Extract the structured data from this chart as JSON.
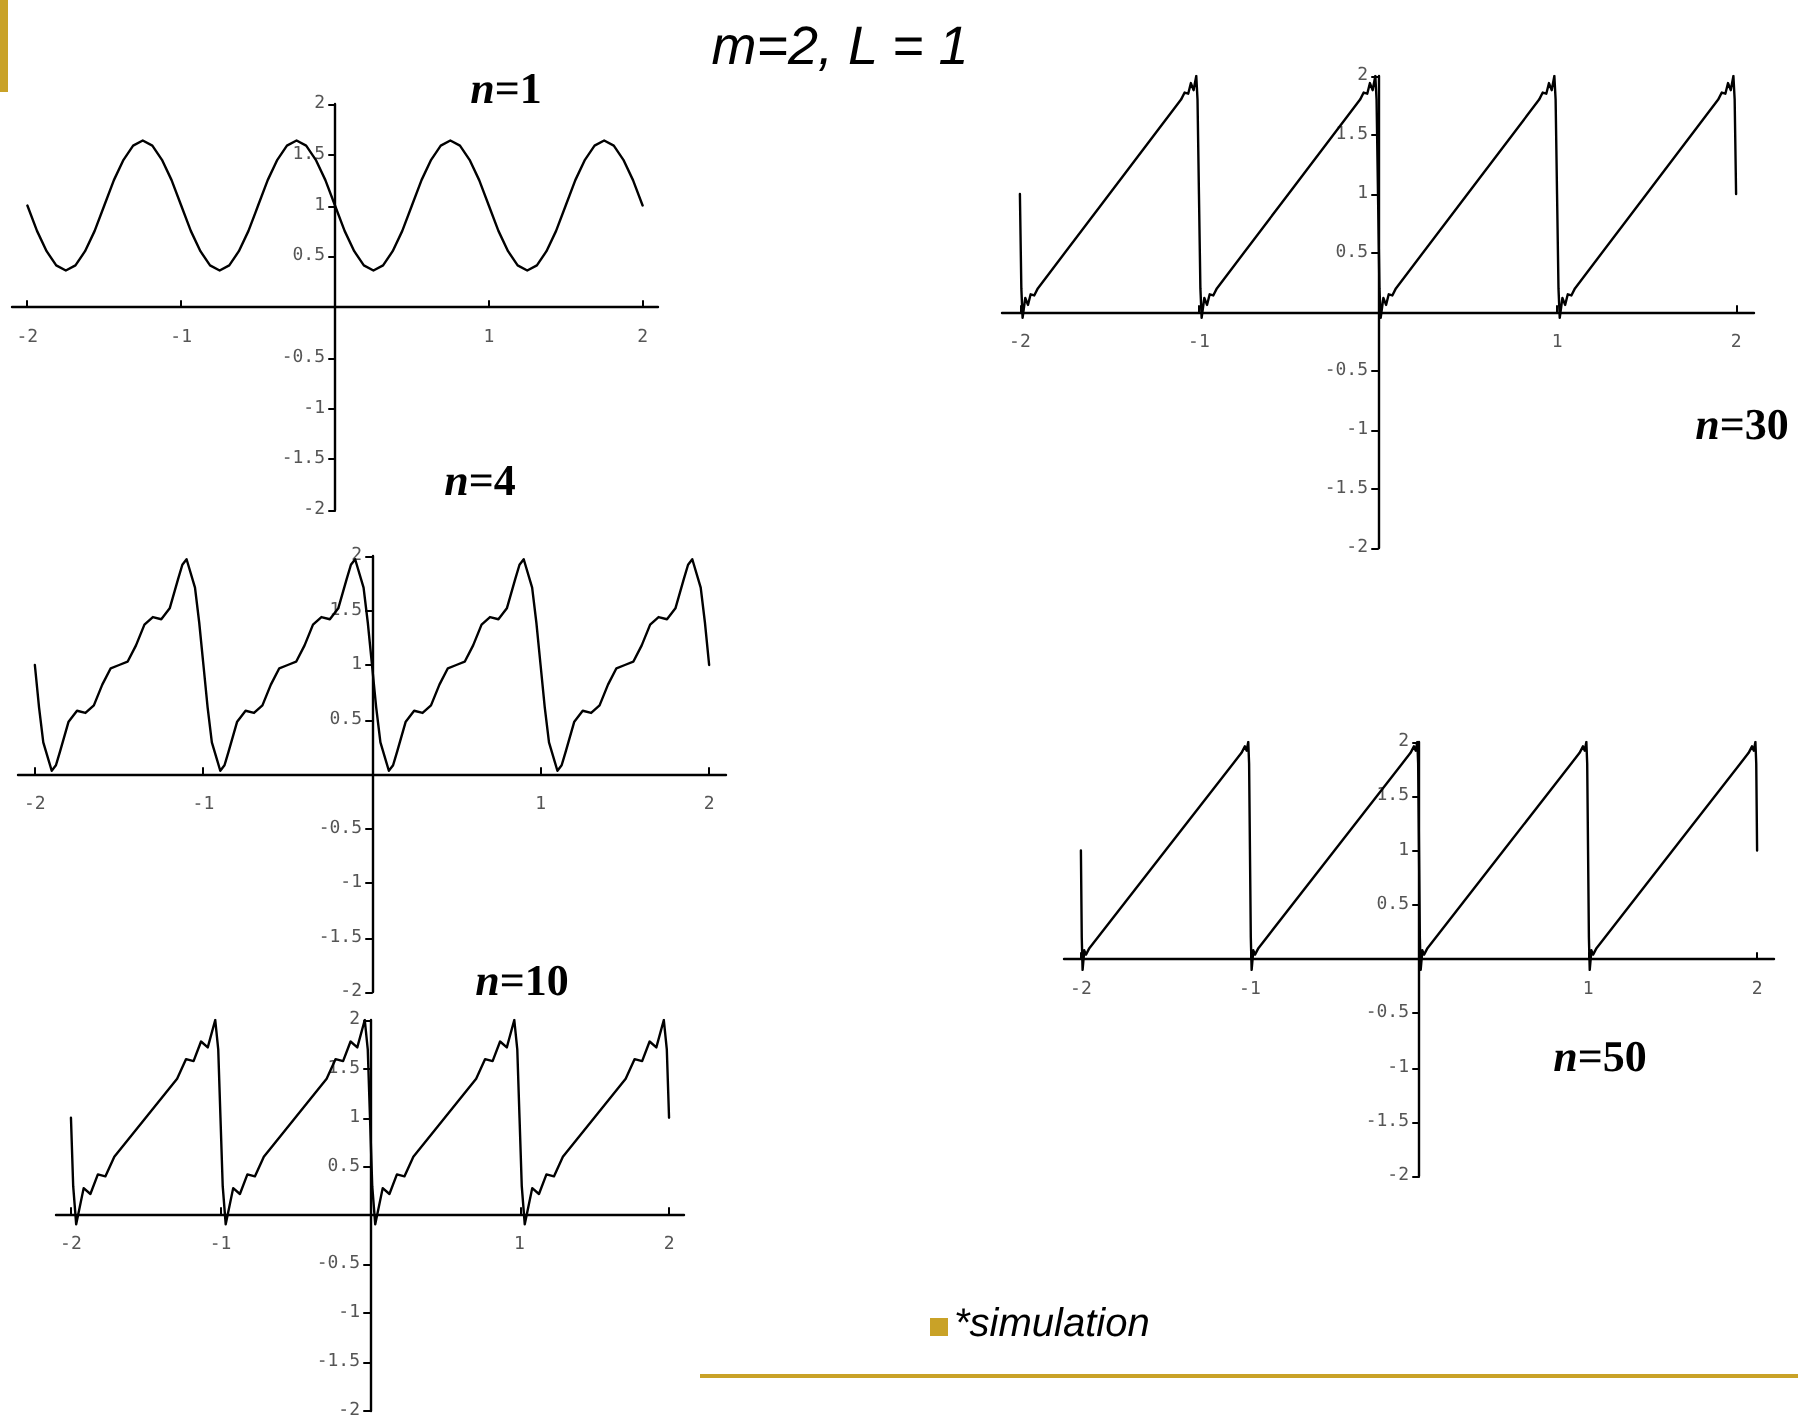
{
  "chart_data": [
    {
      "type": "line",
      "title": "n=1",
      "color": "#000000",
      "xlim": [
        -2.1,
        2.1
      ],
      "xticks": [
        -2,
        -1,
        1,
        2
      ],
      "ylim": [
        -2,
        2
      ],
      "yticks": [
        -2,
        -1.5,
        -1,
        -0.5,
        0.5,
        1,
        1.5,
        2
      ],
      "x": [
        -2,
        -1.9375,
        -1.875,
        -1.8125,
        -1.75,
        -1.6875,
        -1.625,
        -1.5625,
        -1.5,
        -1.4375,
        -1.375,
        -1.3125,
        -1.25,
        -1.1875,
        -1.125,
        -1.0625,
        -1,
        -0.9375,
        -0.875,
        -0.8125,
        -0.75,
        -0.6875,
        -0.625,
        -0.5625,
        -0.5,
        -0.4375,
        -0.375,
        -0.3125,
        -0.25,
        -0.1875,
        -0.125,
        -0.0625,
        0,
        0.0625,
        0.125,
        0.1875,
        0.25,
        0.3125,
        0.375,
        0.4375,
        0.5,
        0.5625,
        0.625,
        0.6875,
        0.75,
        0.8125,
        0.875,
        0.9375,
        1,
        1.0625,
        1.125,
        1.1875,
        1.25,
        1.3125,
        1.375,
        1.4375,
        1.5,
        1.5625,
        1.625,
        1.6875,
        1.75,
        1.8125,
        1.875,
        1.9375,
        2
      ],
      "values": [
        1,
        0.75,
        0.55,
        0.41,
        0.36,
        0.41,
        0.55,
        0.75,
        1,
        1.25,
        1.45,
        1.59,
        1.64,
        1.59,
        1.45,
        1.25,
        1,
        0.75,
        0.55,
        0.41,
        0.36,
        0.41,
        0.55,
        0.75,
        1,
        1.25,
        1.45,
        1.59,
        1.64,
        1.59,
        1.45,
        1.25,
        1,
        0.75,
        0.55,
        0.41,
        0.36,
        0.41,
        0.55,
        0.75,
        1,
        1.25,
        1.45,
        1.59,
        1.64,
        1.59,
        1.45,
        1.25,
        1,
        0.75,
        0.55,
        0.41,
        0.36,
        0.41,
        0.55,
        0.75,
        1,
        1.25,
        1.45,
        1.59,
        1.64,
        1.59,
        1.45,
        1.25,
        1
      ]
    },
    {
      "type": "line",
      "title": "n=4",
      "color": "#000000",
      "xlim": [
        -2.1,
        2.1
      ],
      "xticks": [
        -2,
        -1,
        1,
        2
      ],
      "ylim": [
        -2,
        2
      ],
      "yticks": [
        -2,
        -1.5,
        -1,
        -0.5,
        0.5,
        1,
        1.5,
        2
      ],
      "x": [
        -2,
        -1.975,
        -1.95,
        -1.9,
        -1.875,
        -1.85,
        -1.8,
        -1.75,
        -1.7,
        -1.65,
        -1.6,
        -1.55,
        -1.5,
        -1.45,
        -1.4,
        -1.35,
        -1.3,
        -1.25,
        -1.2,
        -1.15,
        -1.125,
        -1.1,
        -1.05,
        -1.025,
        -1,
        -0.975,
        -0.95,
        -0.9,
        -0.875,
        -0.85,
        -0.8,
        -0.75,
        -0.7,
        -0.65,
        -0.6,
        -0.55,
        -0.5,
        -0.45,
        -0.4,
        -0.35,
        -0.3,
        -0.25,
        -0.2,
        -0.15,
        -0.125,
        -0.1,
        -0.05,
        -0.025,
        0,
        0.025,
        0.05,
        0.1,
        0.125,
        0.15,
        0.2,
        0.25,
        0.3,
        0.35,
        0.4,
        0.45,
        0.5,
        0.55,
        0.6,
        0.65,
        0.7,
        0.75,
        0.8,
        0.85,
        0.875,
        0.9,
        0.95,
        0.975,
        1,
        1.025,
        1.05,
        1.1,
        1.125,
        1.15,
        1.2,
        1.25,
        1.3,
        1.35,
        1.4,
        1.45,
        1.5,
        1.55,
        1.6,
        1.65,
        1.7,
        1.75,
        1.8,
        1.85,
        1.875,
        1.9,
        1.95,
        1.975,
        2
      ],
      "values": [
        1,
        0.61,
        0.29,
        0.03,
        0.08,
        0.21,
        0.48,
        0.58,
        0.56,
        0.63,
        0.82,
        0.97,
        1,
        1.03,
        1.18,
        1.37,
        1.44,
        1.42,
        1.52,
        1.79,
        1.92,
        1.97,
        1.71,
        1.39,
        1,
        0.61,
        0.29,
        0.03,
        0.08,
        0.21,
        0.48,
        0.58,
        0.56,
        0.63,
        0.82,
        0.97,
        1,
        1.03,
        1.18,
        1.37,
        1.44,
        1.42,
        1.52,
        1.79,
        1.92,
        1.97,
        1.71,
        1.39,
        1,
        0.61,
        0.29,
        0.03,
        0.08,
        0.21,
        0.48,
        0.58,
        0.56,
        0.63,
        0.82,
        0.97,
        1,
        1.03,
        1.18,
        1.37,
        1.44,
        1.42,
        1.52,
        1.79,
        1.92,
        1.97,
        1.71,
        1.39,
        1,
        0.61,
        0.29,
        0.03,
        0.08,
        0.21,
        0.48,
        0.58,
        0.56,
        0.63,
        0.82,
        0.97,
        1,
        1.03,
        1.18,
        1.37,
        1.44,
        1.42,
        1.52,
        1.79,
        1.92,
        1.97,
        1.71,
        1.39,
        1
      ]
    },
    {
      "type": "line",
      "title": "n=10",
      "color": "#000000",
      "xlim": [
        -2.1,
        2.1
      ],
      "xticks": [
        -2,
        -1,
        1,
        2
      ],
      "ylim": [
        -2,
        2
      ],
      "yticks": [
        -2,
        -1.5,
        -1,
        -0.5,
        0.5,
        1,
        1.5,
        2
      ],
      "x": [
        -2,
        -1.985,
        -1.965,
        -1.915,
        -1.87,
        -1.82,
        -1.77,
        -1.71,
        -1.5,
        -1.29,
        -1.23,
        -1.18,
        -1.13,
        -1.085,
        -1.035,
        -1.015,
        -1,
        -0.985,
        -0.965,
        -0.915,
        -0.87,
        -0.82,
        -0.77,
        -0.71,
        -0.5,
        -0.29,
        -0.23,
        -0.18,
        -0.13,
        -0.085,
        -0.035,
        -0.015,
        0,
        0.015,
        0.035,
        0.085,
        0.13,
        0.18,
        0.23,
        0.29,
        0.5,
        0.71,
        0.77,
        0.82,
        0.87,
        0.915,
        0.965,
        0.985,
        1,
        1.015,
        1.035,
        1.085,
        1.13,
        1.18,
        1.23,
        1.29,
        1.5,
        1.71,
        1.77,
        1.82,
        1.87,
        1.915,
        1.965,
        1.985,
        2
      ],
      "values": [
        1,
        0.3,
        -0.09,
        0.28,
        0.22,
        0.42,
        0.4,
        0.6,
        1,
        1.4,
        1.6,
        1.58,
        1.78,
        1.72,
        2,
        1.7,
        1,
        0.3,
        -0.09,
        0.28,
        0.22,
        0.42,
        0.4,
        0.6,
        1,
        1.4,
        1.6,
        1.58,
        1.78,
        1.72,
        2,
        1.7,
        1,
        0.3,
        -0.09,
        0.28,
        0.22,
        0.42,
        0.4,
        0.6,
        1,
        1.4,
        1.6,
        1.58,
        1.78,
        1.72,
        2,
        1.7,
        1,
        0.3,
        -0.09,
        0.28,
        0.22,
        0.42,
        0.4,
        0.6,
        1,
        1.4,
        1.6,
        1.58,
        1.78,
        1.72,
        2,
        1.7,
        1
      ]
    },
    {
      "type": "line",
      "title": "n=30",
      "color": "#000000",
      "xlim": [
        -2.1,
        2.1
      ],
      "xticks": [
        -2,
        -1,
        1,
        2
      ],
      "ylim": [
        -2,
        2
      ],
      "yticks": [
        -2,
        -1.5,
        -1,
        -0.5,
        0.5,
        1,
        1.5,
        2
      ],
      "x": [
        -2,
        -1.992,
        -1.985,
        -1.97,
        -1.955,
        -1.94,
        -1.92,
        -1.9,
        -1.5,
        -1.1,
        -1.08,
        -1.06,
        -1.045,
        -1.03,
        -1.015,
        -1.008,
        -1,
        -0.992,
        -0.985,
        -0.97,
        -0.955,
        -0.94,
        -0.92,
        -0.9,
        -0.5,
        -0.1,
        -0.08,
        -0.06,
        -0.045,
        -0.03,
        -0.015,
        -0.008,
        0,
        0.008,
        0.015,
        0.03,
        0.045,
        0.06,
        0.08,
        0.1,
        0.5,
        0.9,
        0.92,
        0.94,
        0.955,
        0.97,
        0.985,
        0.992,
        1,
        1.008,
        1.015,
        1.03,
        1.045,
        1.06,
        1.08,
        1.1,
        1.5,
        1.9,
        1.92,
        1.94,
        1.955,
        1.97,
        1.985,
        1.992,
        2
      ],
      "values": [
        1,
        0.2,
        -0.05,
        0.12,
        0.06,
        0.15,
        0.14,
        0.2,
        1,
        1.8,
        1.86,
        1.85,
        1.94,
        1.88,
        2,
        1.8,
        1,
        0.2,
        -0.05,
        0.12,
        0.06,
        0.15,
        0.14,
        0.2,
        1,
        1.8,
        1.86,
        1.85,
        1.94,
        1.88,
        2,
        1.8,
        1,
        0.2,
        -0.05,
        0.12,
        0.06,
        0.15,
        0.14,
        0.2,
        1,
        1.8,
        1.86,
        1.85,
        1.94,
        1.88,
        2,
        1.8,
        1,
        0.2,
        -0.05,
        0.12,
        0.06,
        0.15,
        0.14,
        0.2,
        1,
        1.8,
        1.86,
        1.85,
        1.94,
        1.88,
        2,
        1.8,
        1
      ]
    },
    {
      "type": "line",
      "title": "n=50",
      "color": "#000000",
      "xlim": [
        -2.1,
        2.1
      ],
      "xticks": [
        -2,
        -1,
        1,
        2
      ],
      "ylim": [
        -2,
        2
      ],
      "yticks": [
        -2,
        -1.5,
        -1,
        -0.5,
        0.5,
        1,
        1.5,
        2
      ],
      "x": [
        -2,
        -1.995,
        -1.99,
        -1.98,
        -1.97,
        -1.95,
        -1.5,
        -1.05,
        -1.03,
        -1.02,
        -1.01,
        -1.005,
        -1,
        -0.995,
        -0.99,
        -0.98,
        -0.97,
        -0.95,
        -0.5,
        -0.05,
        -0.03,
        -0.02,
        -0.01,
        -0.005,
        0,
        0.005,
        0.01,
        0.02,
        0.03,
        0.05,
        0.5,
        0.95,
        0.97,
        0.98,
        0.99,
        0.995,
        1,
        1.005,
        1.01,
        1.02,
        1.03,
        1.05,
        1.5,
        1.95,
        1.97,
        1.98,
        1.99,
        1.995,
        2
      ],
      "values": [
        1,
        0.2,
        -0.1,
        0.08,
        0.04,
        0.1,
        1,
        1.9,
        1.96,
        1.92,
        2,
        1.8,
        1,
        0.2,
        -0.1,
        0.08,
        0.04,
        0.1,
        1,
        1.9,
        1.96,
        1.92,
        2,
        1.8,
        1,
        0.2,
        -0.1,
        0.08,
        0.04,
        0.1,
        1,
        1.9,
        1.96,
        1.92,
        2,
        1.8,
        1,
        0.2,
        -0.1,
        0.08,
        0.04,
        0.1,
        1,
        1.9,
        1.96,
        1.92,
        2,
        1.8,
        1
      ]
    },
    {
      "type": "other",
      "title": "m=2, L = 1",
      "annotations": [
        "*simulation"
      ]
    }
  ]
}
